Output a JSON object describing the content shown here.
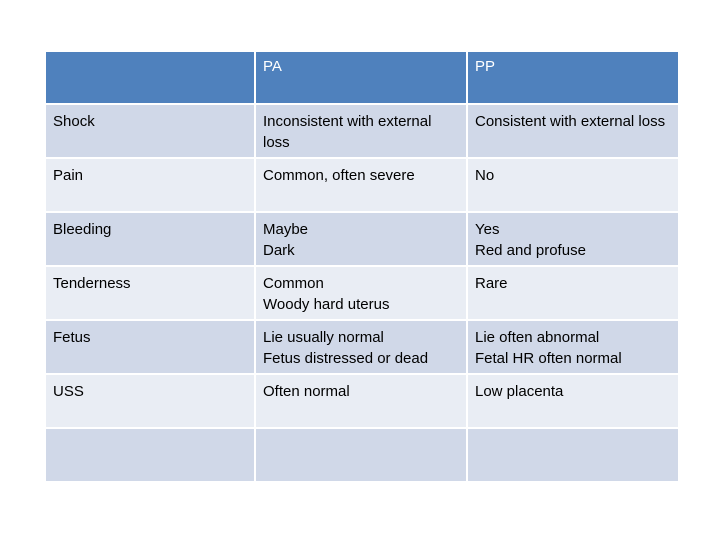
{
  "table": {
    "headers": [
      "",
      "PA",
      "PP"
    ],
    "rows": [
      [
        "Shock",
        "Inconsistent with external loss",
        "Consistent with external loss"
      ],
      [
        "Pain",
        "Common, often severe",
        "No"
      ],
      [
        "Bleeding",
        "Maybe\nDark",
        "Yes\nRed and profuse"
      ],
      [
        "Tenderness",
        "Common\nWoody hard uterus",
        "Rare"
      ],
      [
        "Fetus",
        "Lie usually normal\nFetus distressed or dead",
        "Lie often abnormal\nFetal HR often normal"
      ],
      [
        "USS",
        "Often normal",
        "Low placenta"
      ],
      [
        "",
        "",
        ""
      ]
    ]
  },
  "colors": {
    "header_bg": "#4f81bd",
    "row_odd_bg": "#d0d8e8",
    "row_even_bg": "#e9edf4"
  }
}
